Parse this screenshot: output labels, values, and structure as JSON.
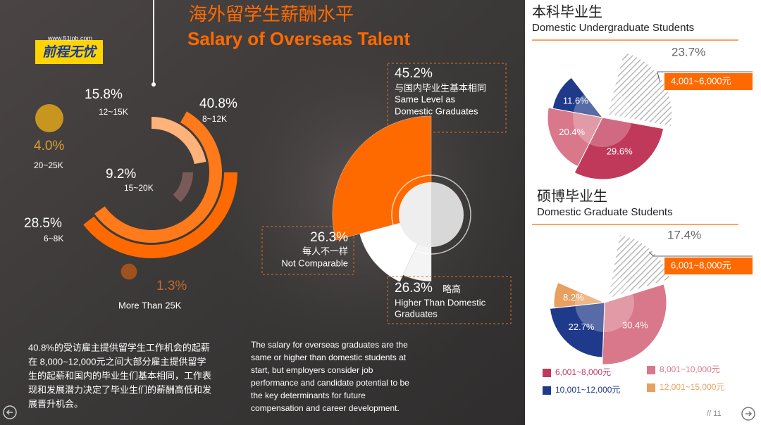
{
  "header": {
    "title_cn": "海外留学生薪酬水平",
    "title_en": "Salary of Overseas Talent",
    "logo_url": "www.51job.com",
    "logo": "前程无忧"
  },
  "salary_ranges": {
    "type": "radial-bar",
    "items": [
      {
        "value": 40.8,
        "value_label": "40.8%",
        "range": "8~12K",
        "color": "#ff7a1a"
      },
      {
        "value": 15.8,
        "value_label": "15.8%",
        "range": "12~15K",
        "color": "#ffb27a"
      },
      {
        "value": 9.2,
        "value_label": "9.2%",
        "range": "15~20K",
        "color": "#7a5a58"
      },
      {
        "value": 28.5,
        "value_label": "28.5%",
        "range": "6~8K",
        "color": "#ff6a00"
      },
      {
        "value": 4.0,
        "value_label": "4.0%",
        "range": "20~25K",
        "color": "#c8961e"
      },
      {
        "value": 1.3,
        "value_label": "1.3%",
        "range": "More Than 25K",
        "color": "#a0521e"
      }
    ]
  },
  "comparison": {
    "type": "rose",
    "items": [
      {
        "value": 45.2,
        "value_label": "45.2%",
        "label_cn": "与国内毕业生基本相同",
        "label_en": [
          "Same Level as",
          "Domestic Graduates"
        ],
        "color": "#ff6a00"
      },
      {
        "value": 26.3,
        "value_label": "26.3%",
        "label_cn": "每人不一样",
        "label_en": [
          "Not Comparable"
        ],
        "color": "#ffffff"
      },
      {
        "value": 26.3,
        "value_label": "26.3%",
        "label_cn": "略高",
        "label_en": [
          "Higher Than  Domestic",
          "Graduates"
        ],
        "color": "#f4f4f4"
      }
    ]
  },
  "undergraduate": {
    "type": "pie",
    "title_cn": "本科毕业生",
    "title_en": "Domestic  Undergraduate Students",
    "slices": [
      {
        "value": 23.7,
        "value_label": "23.7%",
        "label": "4,001~6,000元",
        "hatched": true
      },
      {
        "value": 29.6,
        "value_label": "29.6%",
        "color": "#c0395a"
      },
      {
        "value": 20.4,
        "value_label": "20.4%",
        "color": "#d9788a"
      },
      {
        "value": 11.6,
        "value_label": "11.6%",
        "color": "#1f3a8a"
      }
    ]
  },
  "graduate": {
    "type": "pie",
    "title_cn": "硕博毕业生",
    "title_en": "Domestic  Graduate Students",
    "slices": [
      {
        "value": 17.4,
        "value_label": "17.4%",
        "label": "6,001~8,000元",
        "hatched": true
      },
      {
        "value": 30.4,
        "value_label": "30.4%",
        "color": "#d9788a"
      },
      {
        "value": 22.7,
        "value_label": "22.7%",
        "color": "#1f3a8a"
      },
      {
        "value": 8.2,
        "value_label": "8.2%",
        "color": "#e8a060"
      }
    ]
  },
  "legend": [
    {
      "name": "6,001~8,000元",
      "color": "#c0395a"
    },
    {
      "name": "8,001~10,000元",
      "color": "#d9788a"
    },
    {
      "name": "10,001~12,000元",
      "color": "#1f3a8a"
    },
    {
      "name": "12,001~15,000元",
      "color": "#e8a060"
    }
  ],
  "paragraph_cn": [
    "40.8%的受访雇主提供留学生工作机会的起薪",
    "在 8,000~12,000元之间大部分雇主提供留学",
    "生的起薪和国内的毕业生们基本相同，工作表",
    "现和发展潜力决定了毕业生们的薪酬高低和发",
    "展晋升机会。"
  ],
  "paragraph_en": [
    "The salary for overseas graduates are the",
    "same or higher than domestic students at",
    "start, but employers consider job",
    "performance and candidate potential to be",
    "the key determinants for future",
    "compensation and career development."
  ],
  "footer": {
    "page": "// 11"
  }
}
